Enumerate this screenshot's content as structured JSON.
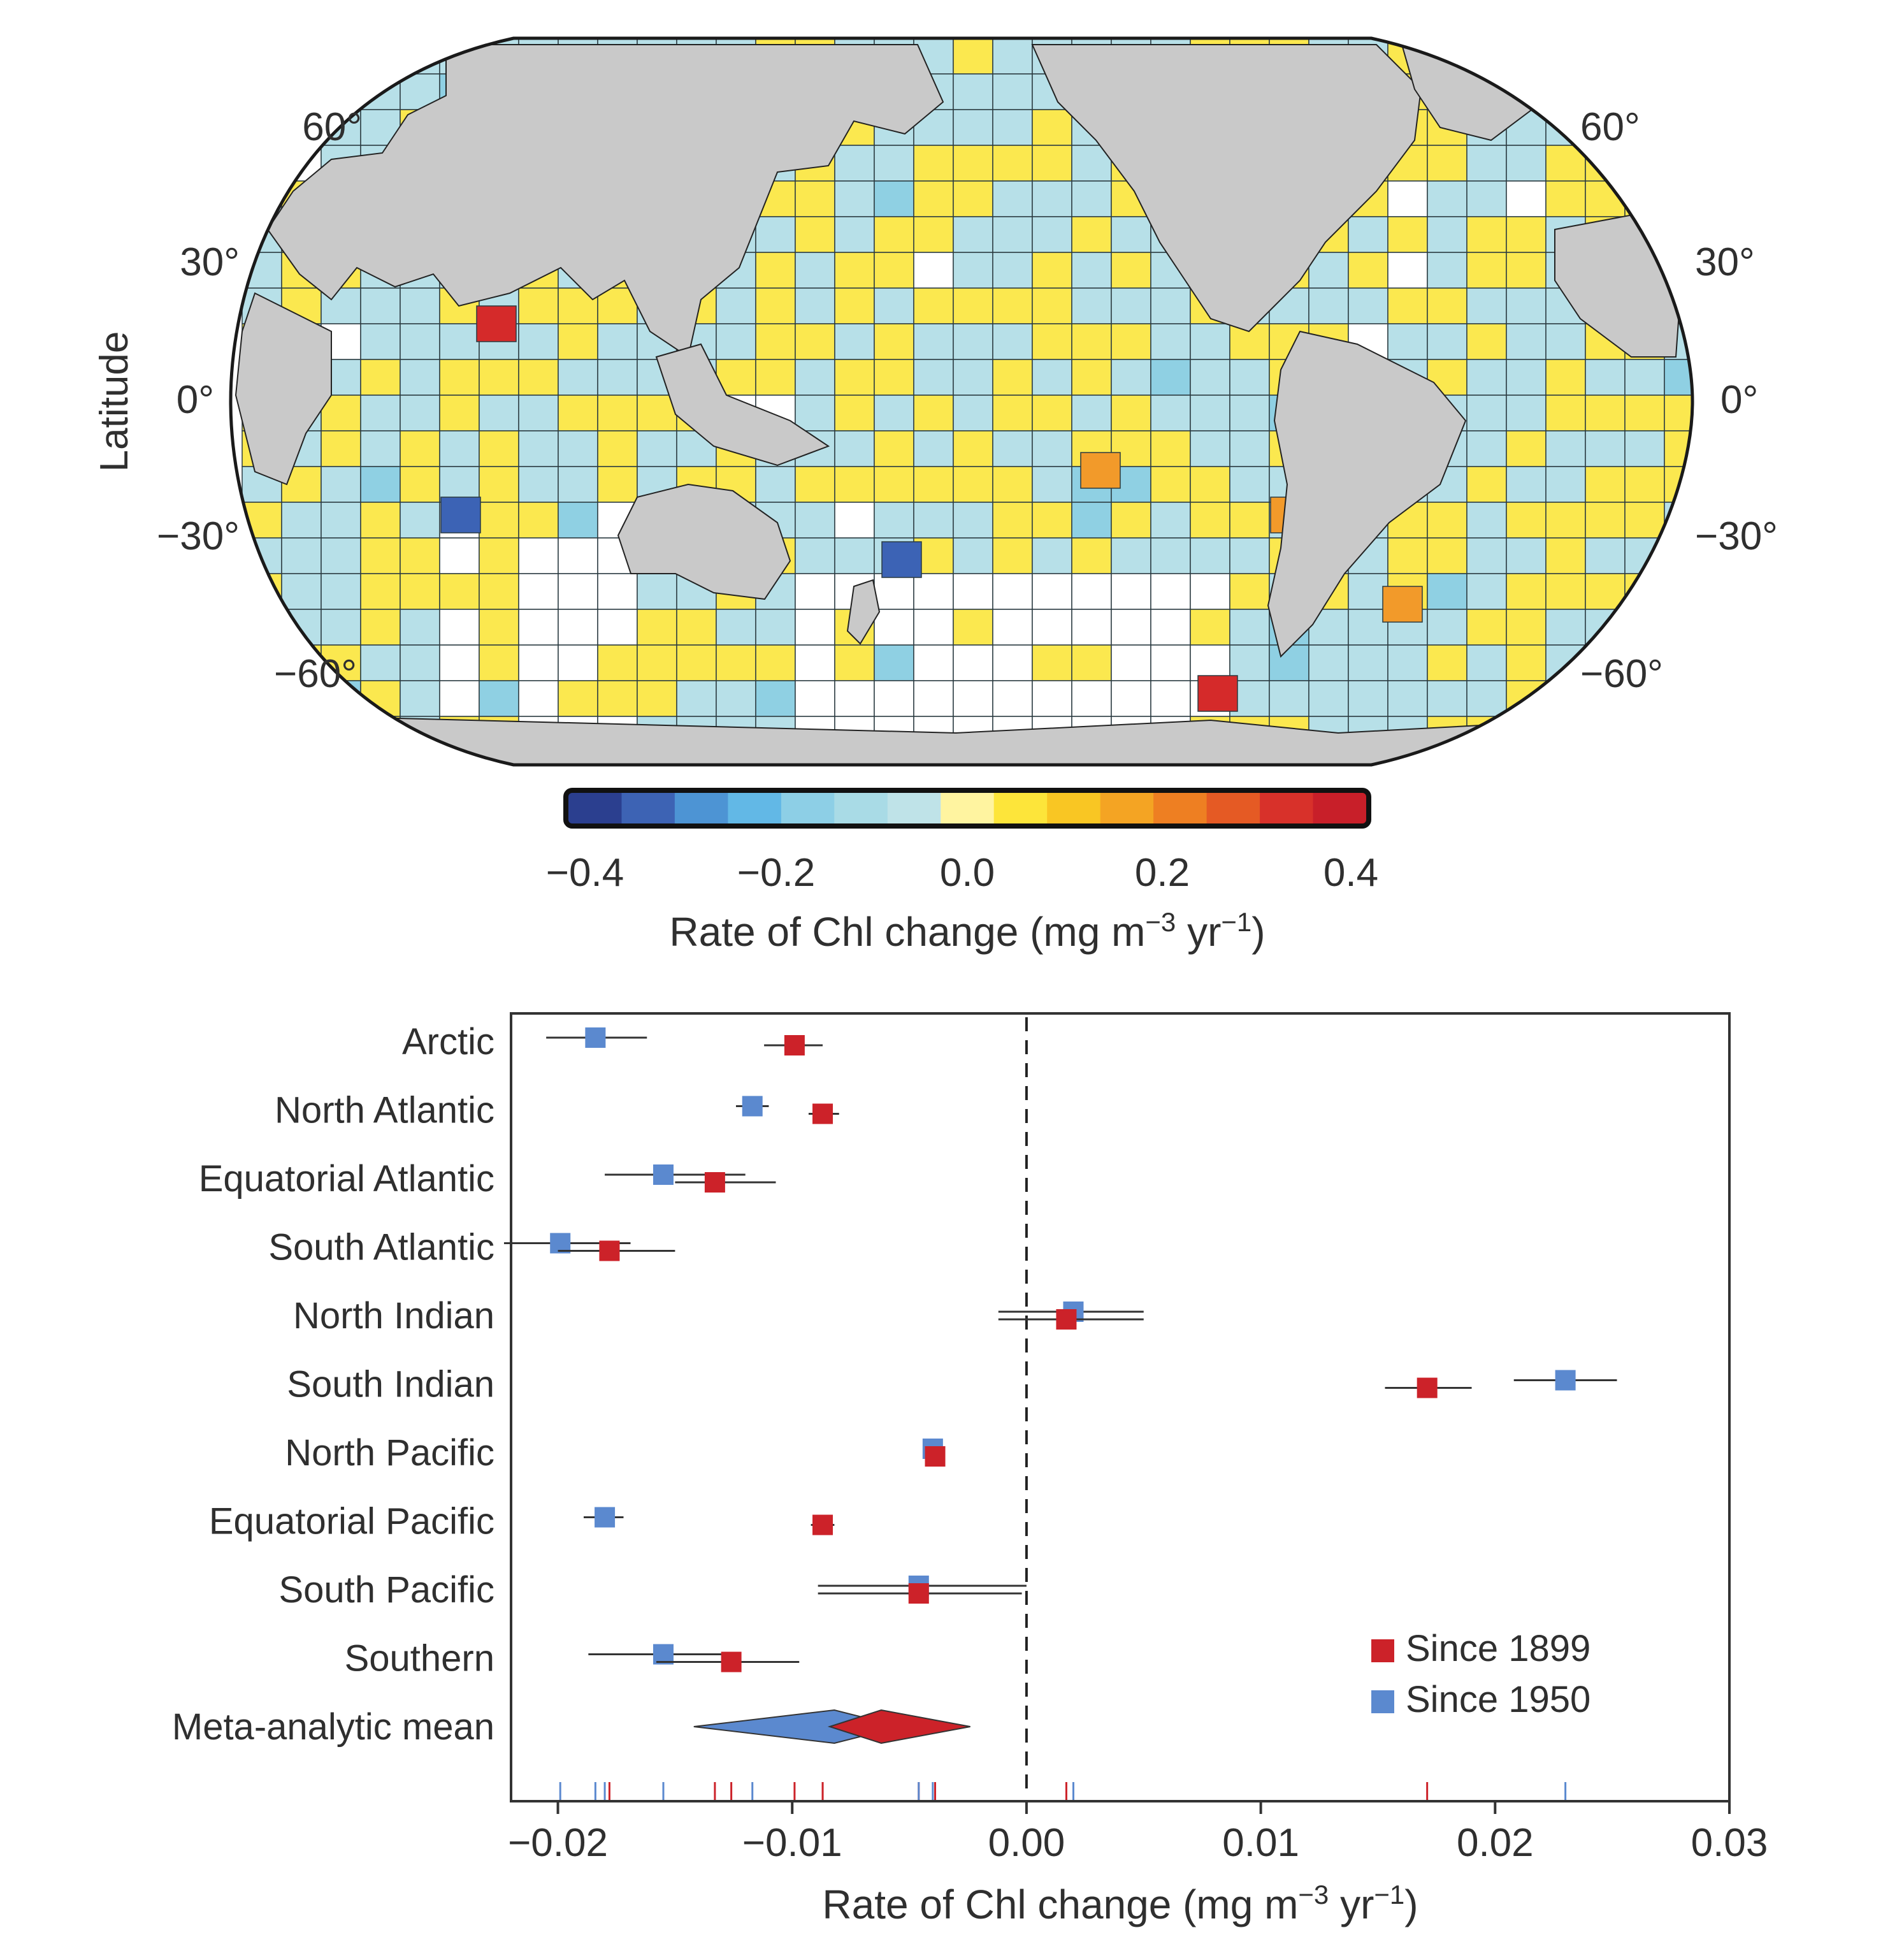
{
  "chart_data": [
    {
      "type": "heatmap",
      "subtype": "world-map",
      "ylabel": "Latitude",
      "lat_ticks_left": [
        "60°",
        "30°",
        "0°",
        "−30°",
        "−60°"
      ],
      "lat_ticks_right": [
        "60°",
        "30°",
        "0°",
        "−30°",
        "−60°"
      ],
      "colorbar": {
        "label_main": "Rate of Chl change (mg m",
        "label_sup1": "−3",
        "label_mid": " yr",
        "label_sup2": "−1",
        "label_end": ")",
        "range": [
          -0.4,
          0.4
        ],
        "ticks": [
          "−0.4",
          "−0.2",
          "0.0",
          "0.2",
          "0.4"
        ],
        "colors": [
          "#2b3f8f",
          "#3d63b4",
          "#4d94d4",
          "#62b8e6",
          "#8dcfe6",
          "#a9dbe6",
          "#bfe3e8",
          "#fff4a0",
          "#fde53a",
          "#f9c623",
          "#f4a423",
          "#ee7f22",
          "#e55a24",
          "#d8312a",
          "#c81f29"
        ],
        "highlight_colors": {
          "zero": "#b7e0e8",
          "positive": "#fbe84f",
          "strong_positive": "#d52a2a",
          "mid_positive": "#f29a2a",
          "negative": "#3c63b5"
        }
      }
    },
    {
      "type": "scatter",
      "subtype": "forest-plot",
      "xlabel_main": "Rate of Chl change (mg m",
      "xlabel_sup1": "−3",
      "xlabel_mid": " yr",
      "xlabel_sup2": "−1",
      "xlabel_end": ")",
      "xlim": [
        -0.022,
        0.03
      ],
      "x_ticks": [
        "−0.02",
        "−0.01",
        "0.00",
        "0.01",
        "0.02",
        "0.03"
      ],
      "x_tick_values": [
        -0.02,
        -0.01,
        0.0,
        0.01,
        0.02,
        0.03
      ],
      "reference_line": 0.0,
      "categories": [
        "Arctic",
        "North Atlantic",
        "Equatorial Atlantic",
        "South Atlantic",
        "North Indian",
        "South Indian",
        "North Pacific",
        "Equatorial Pacific",
        "South Pacific",
        "Southern",
        "Meta-analytic mean"
      ],
      "series": [
        {
          "name": "Since 1899",
          "color": "#cc2229",
          "values": [
            -0.0099,
            -0.0087,
            -0.0133,
            -0.0178,
            0.0017,
            0.0171,
            -0.0039,
            -0.0087,
            -0.0046,
            -0.0126
          ],
          "ci_low": [
            -0.0112,
            -0.0093,
            -0.015,
            -0.02,
            -0.0012,
            0.0153,
            -0.0043,
            -0.0092,
            -0.0089,
            -0.0158
          ],
          "ci_high": [
            -0.0087,
            -0.008,
            -0.0107,
            -0.015,
            0.005,
            0.019,
            -0.0035,
            -0.0082,
            -0.0002,
            -0.0097
          ],
          "meta_mean": -0.0062,
          "meta_ci": [
            -0.0084,
            -0.0024
          ]
        },
        {
          "name": "Since 1950",
          "color": "#5b89cf",
          "values": [
            -0.0184,
            -0.0117,
            -0.0155,
            -0.0199,
            0.002,
            0.023,
            -0.004,
            -0.018,
            -0.0046,
            -0.0155
          ],
          "ci_low": [
            -0.0205,
            -0.0124,
            -0.018,
            -0.0223,
            -0.0012,
            0.0208,
            -0.0043,
            -0.0189,
            -0.0089,
            -0.0187
          ],
          "ci_high": [
            -0.0162,
            -0.011,
            -0.012,
            -0.0169,
            0.005,
            0.0252,
            -0.0035,
            -0.0172,
            0.0,
            -0.0122
          ],
          "meta_mean": -0.0082,
          "meta_ci": [
            -0.0142,
            -0.0054
          ]
        }
      ],
      "legend": {
        "position": "bottom-right",
        "entries": [
          "Since 1899",
          "Since 1950"
        ]
      }
    }
  ]
}
